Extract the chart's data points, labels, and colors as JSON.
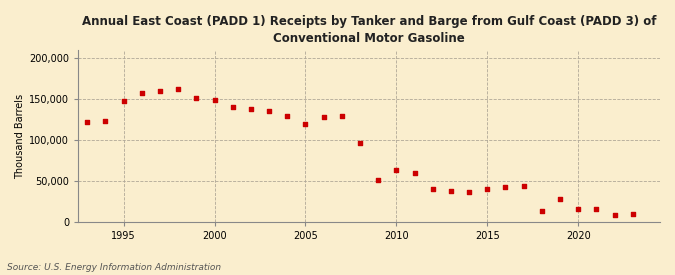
{
  "title": "Annual East Coast (PADD 1) Receipts by Tanker and Barge from Gulf Coast (PADD 3) of\nConventional Motor Gasoline",
  "ylabel": "Thousand Barrels",
  "source": "Source: U.S. Energy Information Administration",
  "background_color": "#faeece",
  "dot_color": "#cc0000",
  "years": [
    1993,
    1994,
    1995,
    1996,
    1997,
    1998,
    1999,
    2000,
    2001,
    2002,
    2003,
    2004,
    2005,
    2006,
    2007,
    2008,
    2009,
    2010,
    2011,
    2012,
    2013,
    2014,
    2015,
    2016,
    2017,
    2018,
    2019,
    2020,
    2021,
    2022,
    2023
  ],
  "values": [
    122000,
    123000,
    148000,
    158000,
    160000,
    163000,
    151000,
    149000,
    141000,
    138000,
    136000,
    130000,
    120000,
    128000,
    130000,
    96000,
    51000,
    63000,
    60000,
    40000,
    38000,
    36000,
    40000,
    42000,
    44000,
    13000,
    28000,
    16000,
    16000,
    8000,
    9000
  ],
  "ylim": [
    0,
    210000
  ],
  "yticks": [
    0,
    50000,
    100000,
    150000,
    200000
  ],
  "xlim": [
    1992.5,
    2024.5
  ],
  "xticks": [
    1995,
    2000,
    2005,
    2010,
    2015,
    2020
  ]
}
